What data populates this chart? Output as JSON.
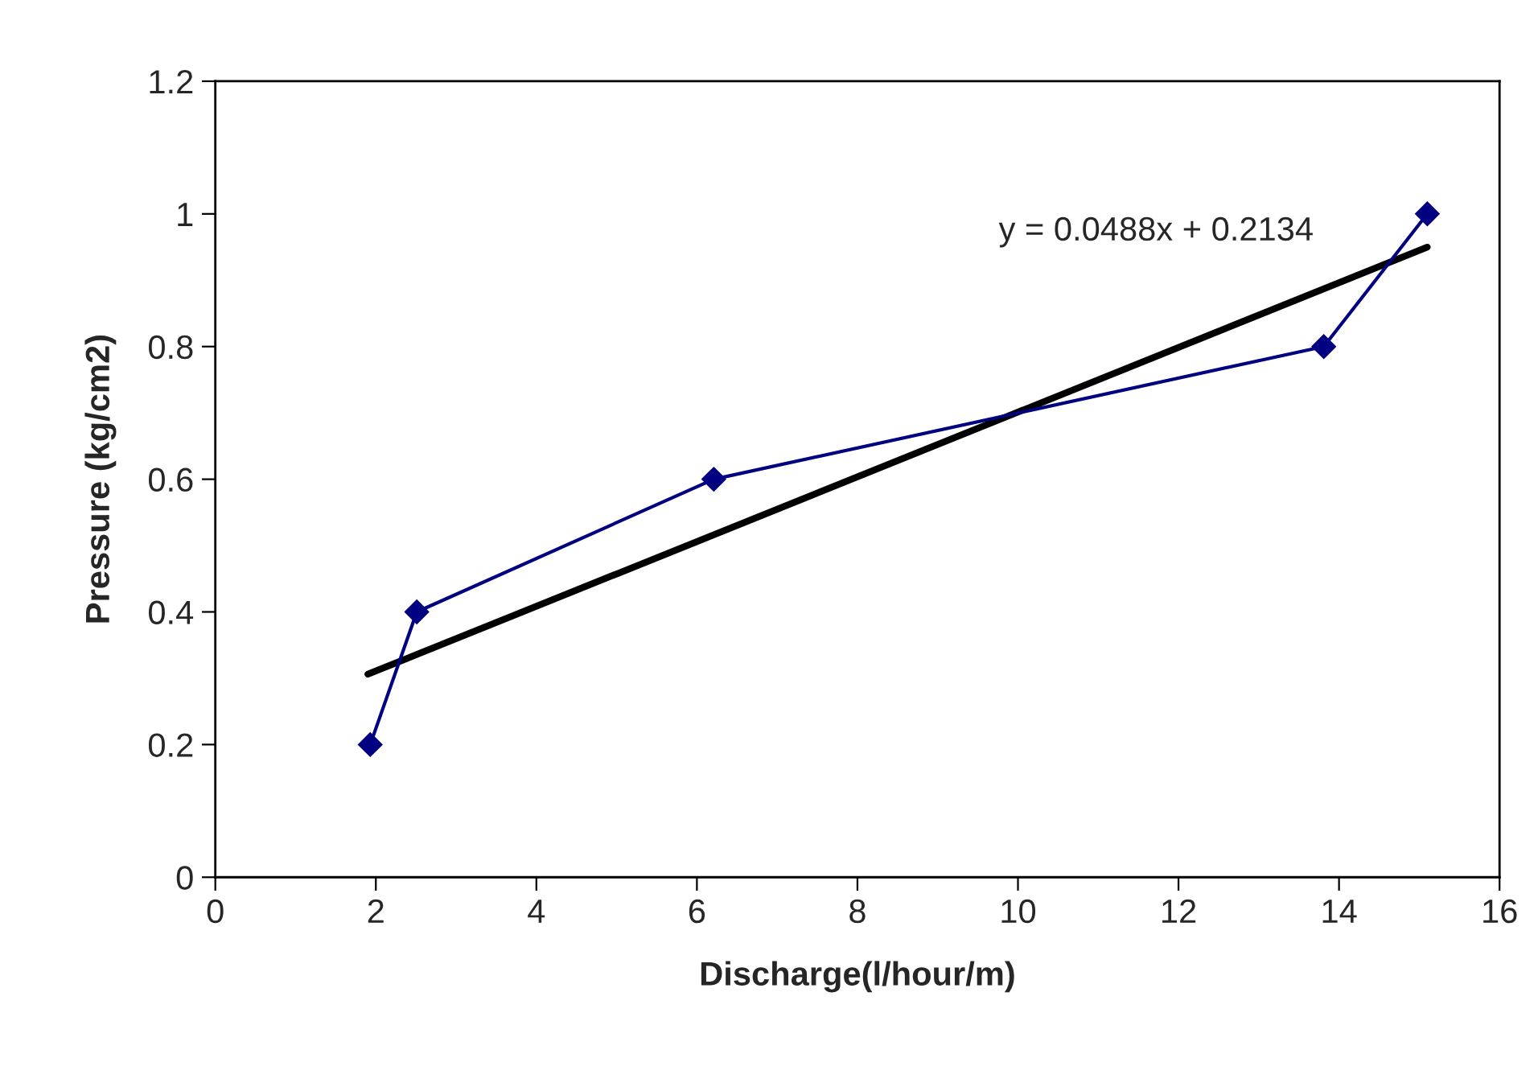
{
  "chart_data": {
    "type": "line",
    "xlabel": "Discharge(l/hour/m)",
    "ylabel": "Pressure (kg/cm2)",
    "xlim": [
      0,
      16
    ],
    "xticks": [
      0,
      2,
      4,
      6,
      8,
      10,
      12,
      14,
      16
    ],
    "ylim": [
      0,
      1.2
    ],
    "yticks": [
      0,
      0.2,
      0.4,
      0.6,
      0.8,
      1,
      1.2
    ],
    "grid": false,
    "legend": false,
    "marker": "diamond",
    "line_style": "solid",
    "annotations": [
      "y = 0.0488x + 0.2134"
    ],
    "series": [
      {
        "color": "#000080",
        "x": [
          1.93,
          2.51,
          6.21,
          13.81,
          15.1
        ],
        "values": [
          0.2,
          0.4,
          0.6,
          0.8,
          1.0
        ]
      },
      {
        "type": "line",
        "color": "#000000",
        "marker": "none",
        "x": [
          1.9,
          15.1
        ],
        "values": [
          0.306,
          0.95
        ]
      }
    ]
  }
}
